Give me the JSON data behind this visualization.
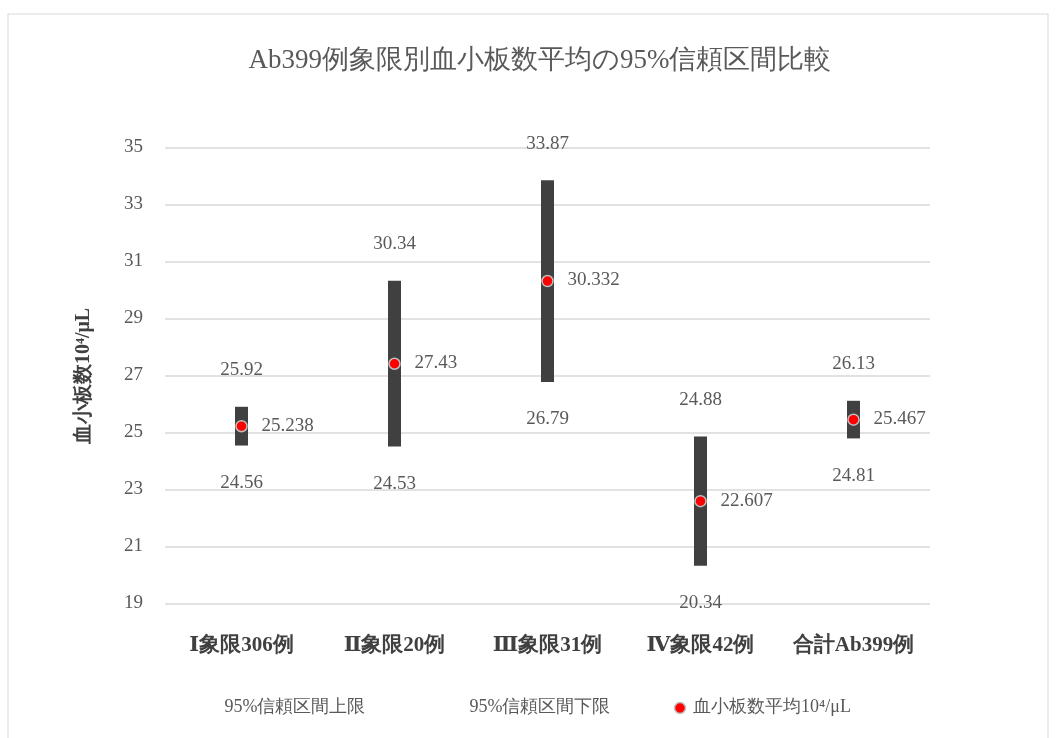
{
  "chart_data": {
    "type": "scatter",
    "title": "Ab399例象限別血小板数平均の95%信頼区間比較",
    "ylabel": "血小板数10⁴/μL",
    "categories": [
      "Ⅰ象限306例",
      "Ⅱ象限20例",
      "Ⅲ象限31例",
      "Ⅳ象限42例",
      "合計Ab399例"
    ],
    "ylim": [
      19,
      35
    ],
    "yticks": [
      19,
      21,
      23,
      25,
      27,
      29,
      31,
      33,
      35
    ],
    "grid": "y",
    "legend": "bottom",
    "series": [
      {
        "name": "血小板数平均10⁴/μL",
        "marker": "circle",
        "color": "#ff0000",
        "values": [
          25.238,
          27.43,
          30.332,
          22.607,
          25.467
        ],
        "value_labels": [
          "25.238",
          "27.43",
          "30.332",
          "22.607",
          "25.467"
        ],
        "errors": [
          [
            24.56,
            25.92
          ],
          [
            24.53,
            30.34
          ],
          [
            26.79,
            33.87
          ],
          [
            20.34,
            24.88
          ],
          [
            24.81,
            26.13
          ]
        ]
      }
    ],
    "annotations": [
      "95%信頼区間上限",
      "95%信頼区間下限",
      {
        "text": "25.92",
        "x": "Ⅰ象限306例",
        "y": 25.92
      },
      {
        "text": "30.34",
        "x": "Ⅱ象限20例",
        "y": 30.34
      },
      {
        "text": "33.87",
        "x": "Ⅲ象限31例",
        "y": 33.87
      },
      {
        "text": "24.88",
        "x": "Ⅳ象限42例",
        "y": 24.88
      },
      {
        "text": "26.13",
        "x": "合計Ab399例",
        "y": 26.13
      },
      {
        "text": "24.56",
        "x": "Ⅰ象限306例",
        "y": 24.56
      },
      {
        "text": "24.53",
        "x": "Ⅱ象限20例",
        "y": 24.53
      },
      {
        "text": "26.79",
        "x": "Ⅲ象限31例",
        "y": 26.79
      },
      {
        "text": "20.34",
        "x": "Ⅳ象限42例",
        "y": 20.34
      },
      {
        "text": "24.81",
        "x": "合計Ab399例",
        "y": 24.81
      }
    ]
  }
}
